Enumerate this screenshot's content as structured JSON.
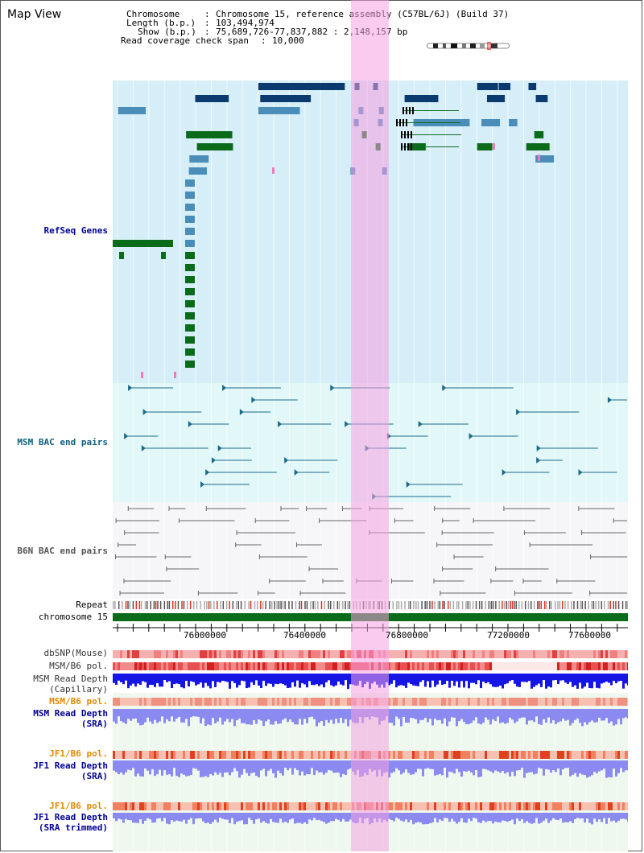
{
  "map": {
    "title": "Map View",
    "info": {
      "chromosome_label": "Chromosome",
      "chromosome_value": "Chromosome 15, reference assembly (C57BL/6J) (Build 37)",
      "length_label": "Length (b.p.)",
      "length_value": "103,494,974",
      "show_label": "Show (b.p.)",
      "show_value": "75,689,726-77,837,882 : 2,148,157 bp",
      "coverage_label": "Read coverage check span",
      "coverage_value": "10,000"
    },
    "axis_ticks": [
      "76000000",
      "76400000",
      "76800000",
      "77200000",
      "77600000"
    ],
    "tracks": {
      "refseq": "RefSeq Genes",
      "msm_bac": "MSM BAC end pairs",
      "b6n_bac": "B6N BAC end pairs",
      "repeat": "Repeat",
      "chromosome": "chromosome 15",
      "dbsnp": "dbSNP(Mouse)",
      "msm_b6_pol_1": "MSM/B6 pol.",
      "msm_depth_cap_1": "MSM Read Depth",
      "msm_depth_cap_2": "(Capillary)",
      "msm_b6_pol_2": "MSM/B6 pol.",
      "msm_depth_sra_1": "MSM Read Depth",
      "msm_depth_sra_2": "(SRA)",
      "jf1_b6_pol_1": "JF1/B6 pol.",
      "jf1_depth_sra_1": "JF1 Read Depth",
      "jf1_depth_sra_2": "(SRA)",
      "jf1_b6_pol_2": "JF1/B6 pol.",
      "jf1_depth_trim_1": "JF1 Read Depth",
      "jf1_depth_trim_2": "(SRA trimmed)"
    },
    "colors": {
      "refseq_bg": "#d6eef8",
      "msm_bac_bg": "#e2f8f8",
      "b6n_bac_bg": "#f6f6f9",
      "highlight": "#f5a0e1",
      "gene_dark": "#0a3a6e",
      "gene_mid": "#4a8db8",
      "gene_green": "#0a6b1a",
      "bac_teal": "#1a6a8a",
      "bac_gray": "#666666",
      "depth_blue": "#1515e6",
      "depth_light": "#8a8af0",
      "pol_red": "#e03020",
      "pol_orange": "#e08a00",
      "label_blue": "#000099",
      "label_teal": "#106080",
      "label_orange": "#e08a00"
    }
  }
}
